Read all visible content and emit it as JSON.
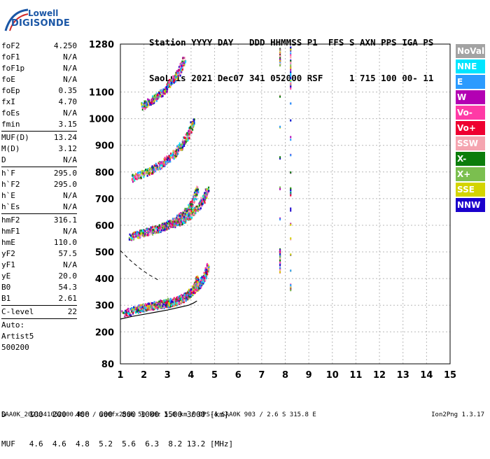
{
  "logo": {
    "line1": "Lowell",
    "line2": "DIGISONDE"
  },
  "header": {
    "line1": "Station YYYY DAY   DDD HHMMSS P1  FFS S AXN PPS IGA PS",
    "line2": "SaoLuis 2021 Dec07 341 052000 RSF     1 715 100 00- 11"
  },
  "params": [
    [
      {
        "label": "foF2",
        "value": "4.250"
      },
      {
        "label": "foF1",
        "value": "N/A"
      },
      {
        "label": "foF1p",
        "value": "N/A"
      },
      {
        "label": "foE",
        "value": "N/A"
      },
      {
        "label": "foEp",
        "value": "0.35"
      },
      {
        "label": "fxI",
        "value": "4.70"
      },
      {
        "label": "foEs",
        "value": "N/A"
      },
      {
        "label": "fmin",
        "value": "3.15"
      }
    ],
    [
      {
        "label": "MUF(D)",
        "value": "13.24"
      },
      {
        "label": "M(D)",
        "value": "3.12"
      },
      {
        "label": "D",
        "value": "N/A"
      }
    ],
    [
      {
        "label": "h`F",
        "value": "295.0"
      },
      {
        "label": "h`F2",
        "value": "295.0"
      },
      {
        "label": "h`E",
        "value": "N/A"
      },
      {
        "label": "h`Es",
        "value": "N/A"
      }
    ],
    [
      {
        "label": "hmF2",
        "value": "316.1"
      },
      {
        "label": "hmF1",
        "value": "N/A"
      },
      {
        "label": "hmE",
        "value": "110.0"
      },
      {
        "label": "yF2",
        "value": "57.5"
      },
      {
        "label": "yF1",
        "value": "N/A"
      },
      {
        "label": "yE",
        "value": "20.0"
      },
      {
        "label": "B0",
        "value": "54.3"
      },
      {
        "label": "B1",
        "value": "2.61"
      }
    ],
    [
      {
        "label": "C-level",
        "value": "22"
      }
    ],
    [
      {
        "label": "Auto:",
        "value": ""
      },
      {
        "label": "Artist5",
        "value": ""
      },
      {
        "label": "500200",
        "value": ""
      }
    ]
  ],
  "legend": [
    {
      "label": "NoVal",
      "color": "#a3a3a3"
    },
    {
      "label": "NNE",
      "color": "#00e5ff"
    },
    {
      "label": "E",
      "color": "#2b9bff"
    },
    {
      "label": "W",
      "color": "#b300b3"
    },
    {
      "label": "Vo-",
      "color": "#ff3aa6"
    },
    {
      "label": "Vo+",
      "color": "#ee0030"
    },
    {
      "label": "SSW",
      "color": "#f5a5b0"
    },
    {
      "label": "X-",
      "color": "#0b7d0b"
    },
    {
      "label": "X+",
      "color": "#7bbf4f"
    },
    {
      "label": "SSE",
      "color": "#d4d400"
    },
    {
      "label": "NNW",
      "color": "#1a00cc"
    }
  ],
  "muf_table": {
    "d_row": "D     100  200  400  600  800 1000 1500 3000 [km]",
    "muf_row": "MUF   4.6  4.6  4.8  5.2  5.6  6.3  8.2 13.2 [MHz]"
  },
  "footer": "SAA0K_2021341052000.RSF / 280fx256h 50 kHz 5.0 km / DPS-4 SAA0K 903 / 2.6 S 315.8 E",
  "version": "Ion2Png 1.3.17",
  "chart_data": {
    "type": "scatter",
    "xlim": [
      1,
      15
    ],
    "ylim": [
      80,
      1280
    ],
    "x_ticks": [
      "1",
      "2",
      "3",
      "4",
      "5",
      "6",
      "7",
      "8",
      "9",
      "10",
      "11",
      "12",
      "13",
      "14",
      "15"
    ],
    "y_ticks": [
      "80",
      "200",
      "300",
      "400",
      "500",
      "600",
      "700",
      "800",
      "900",
      "1000",
      "1100",
      "1280"
    ],
    "grid": true,
    "profile_curve": {
      "x": [
        1.0,
        1.5,
        2.0,
        2.5,
        3.0,
        3.5,
        3.9,
        4.1,
        4.25
      ],
      "y": [
        248,
        258,
        266,
        274,
        282,
        292,
        300,
        308,
        316
      ]
    },
    "dashed_curve": {
      "x": [
        1.0,
        1.4,
        1.8,
        2.2,
        2.6
      ],
      "y": [
        505,
        470,
        440,
        415,
        395
      ]
    },
    "traces": [
      {
        "name": "o-trace 1",
        "x": [
          1.1,
          1.6,
          2.0,
          2.4,
          2.8,
          3.1,
          3.4,
          3.7,
          3.9,
          4.1,
          4.2,
          4.25
        ],
        "y": [
          270,
          285,
          295,
          300,
          305,
          310,
          318,
          330,
          345,
          365,
          385,
          400
        ]
      },
      {
        "name": "x-trace 1",
        "x": [
          1.7,
          2.1,
          2.5,
          2.9,
          3.3,
          3.6,
          3.9,
          4.2,
          4.4,
          4.6,
          4.7
        ],
        "y": [
          290,
          298,
          305,
          312,
          320,
          330,
          345,
          365,
          390,
          420,
          450
        ]
      },
      {
        "name": "o-trace 2",
        "x": [
          1.4,
          1.8,
          2.2,
          2.6,
          3.0,
          3.3,
          3.6,
          3.9,
          4.1,
          4.25
        ],
        "y": [
          560,
          570,
          580,
          590,
          605,
          620,
          640,
          665,
          700,
          740
        ]
      },
      {
        "name": "x-trace 2",
        "x": [
          2.6,
          3.0,
          3.4,
          3.7,
          4.0,
          4.3,
          4.5,
          4.7
        ],
        "y": [
          590,
          600,
          612,
          625,
          645,
          670,
          700,
          740
        ]
      },
      {
        "name": "o-trace 3",
        "x": [
          1.5,
          1.9,
          2.3,
          2.7,
          3.0,
          3.3,
          3.6,
          3.9,
          4.1
        ],
        "y": [
          780,
          795,
          810,
          830,
          850,
          875,
          905,
          950,
          1000
        ]
      },
      {
        "name": "o-trace 4",
        "x": [
          1.9,
          2.3,
          2.6,
          2.9,
          3.2,
          3.5,
          3.7
        ],
        "y": [
          1050,
          1070,
          1090,
          1115,
          1145,
          1180,
          1230
        ]
      },
      {
        "name": "vertical line 1",
        "x": [
          7.75,
          7.75,
          7.75,
          7.75,
          7.75,
          7.75,
          7.75,
          7.75
        ],
        "y": [
          1265,
          1240,
          1220,
          1205,
          510,
          490,
          460,
          420
        ]
      },
      {
        "name": "vertical line 2",
        "x": [
          8.2,
          8.2,
          8.2,
          8.2,
          8.2,
          8.2,
          8.2,
          8.2
        ],
        "y": [
          1270,
          1200,
          1140,
          1120,
          740,
          720,
          380,
          360
        ]
      }
    ]
  }
}
